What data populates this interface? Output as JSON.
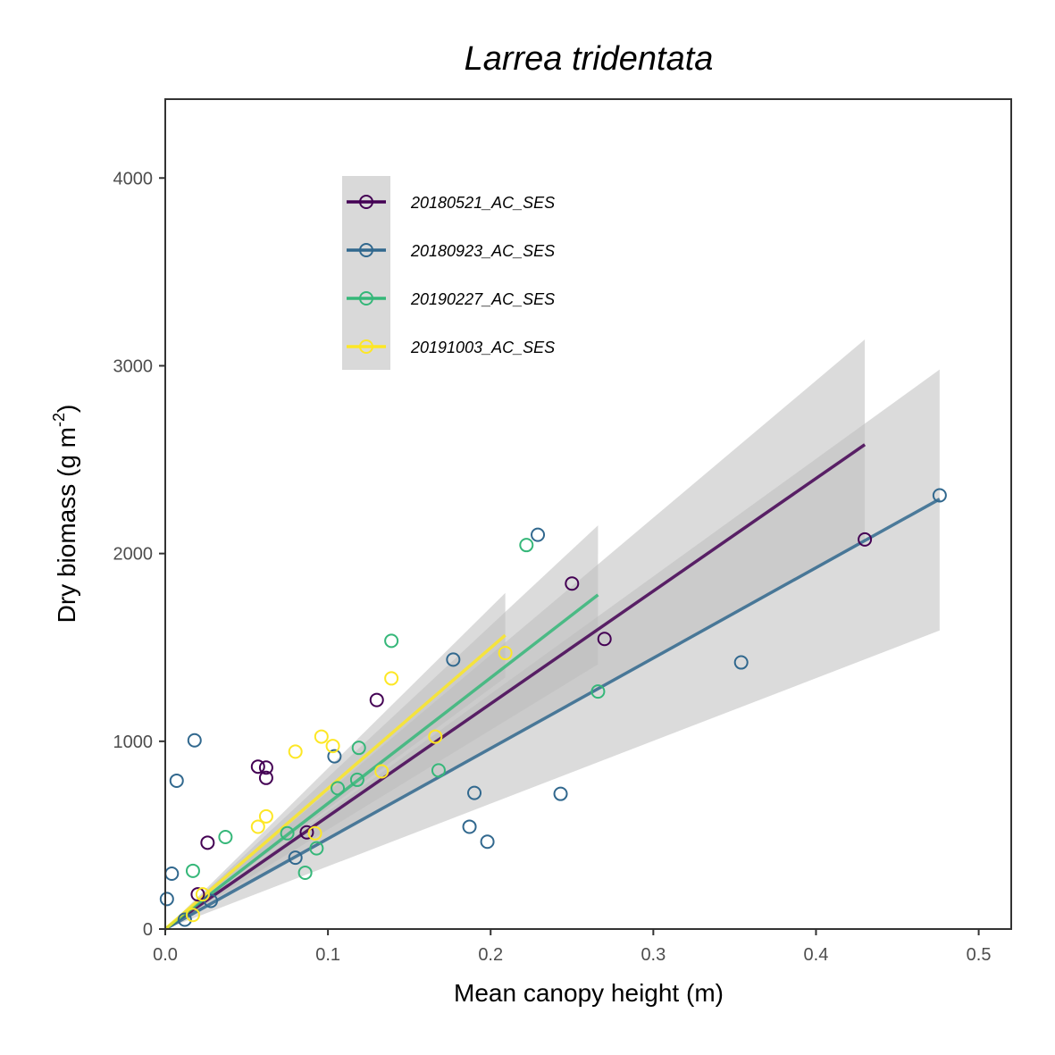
{
  "chart_data": {
    "type": "scatter",
    "title": "Larrea tridentata",
    "xlabel": "Mean canopy height (m)",
    "ylabel": "Dry biomass (g m",
    "ylabel_sup": "-2",
    "ylabel_close": ")",
    "xlim": [
      0,
      0.52
    ],
    "ylim": [
      0,
      4420
    ],
    "x_ticks": [
      0.0,
      0.1,
      0.2,
      0.3,
      0.4,
      0.5
    ],
    "x_tick_labels": [
      "0.0",
      "0.1",
      "0.2",
      "0.3",
      "0.4",
      "0.5"
    ],
    "y_ticks": [
      0,
      1000,
      2000,
      3000,
      4000
    ],
    "y_tick_labels": [
      "0",
      "1000",
      "2000",
      "3000",
      "4000"
    ],
    "grid": false,
    "legend_position": "top-left",
    "confidence_band_color": "#bdbdbd",
    "series": [
      {
        "name": "20180521_AC_SES",
        "color": "#440154",
        "points": [
          [
            0.02,
            185
          ],
          [
            0.026,
            460
          ],
          [
            0.057,
            865
          ],
          [
            0.062,
            860
          ],
          [
            0.062,
            805
          ],
          [
            0.13,
            1220
          ],
          [
            0.25,
            1840
          ],
          [
            0.27,
            1545
          ],
          [
            0.43,
            2075
          ],
          [
            0.087,
            515
          ]
        ],
        "fit": {
          "x": [
            0.0,
            0.43
          ],
          "y": [
            0,
            2580
          ]
        },
        "band": {
          "x": [
            0.0,
            0.43
          ],
          "lower": [
            0,
            2060
          ],
          "upper": [
            0,
            3140
          ]
        }
      },
      {
        "name": "20180923_AC_SES",
        "color": "#31688e",
        "points": [
          [
            0.001,
            160
          ],
          [
            0.004,
            295
          ],
          [
            0.007,
            790
          ],
          [
            0.012,
            50
          ],
          [
            0.018,
            1005
          ],
          [
            0.028,
            150
          ],
          [
            0.08,
            380
          ],
          [
            0.104,
            920
          ],
          [
            0.177,
            1435
          ],
          [
            0.187,
            545
          ],
          [
            0.19,
            725
          ],
          [
            0.198,
            465
          ],
          [
            0.229,
            2100
          ],
          [
            0.243,
            720
          ],
          [
            0.354,
            1420
          ],
          [
            0.476,
            2310
          ]
        ],
        "fit": {
          "x": [
            0.0,
            0.476
          ],
          "y": [
            0,
            2290
          ]
        },
        "band": {
          "x": [
            0.0,
            0.476
          ],
          "lower": [
            0,
            1590
          ],
          "upper": [
            0,
            2980
          ]
        }
      },
      {
        "name": "20190227_AC_SES",
        "color": "#35b779",
        "points": [
          [
            0.017,
            310
          ],
          [
            0.037,
            490
          ],
          [
            0.075,
            510
          ],
          [
            0.086,
            300
          ],
          [
            0.093,
            430
          ],
          [
            0.106,
            750
          ],
          [
            0.118,
            795
          ],
          [
            0.119,
            965
          ],
          [
            0.139,
            1535
          ],
          [
            0.168,
            845
          ],
          [
            0.222,
            2045
          ],
          [
            0.266,
            1265
          ]
        ],
        "fit": {
          "x": [
            0.0,
            0.266
          ],
          "y": [
            0,
            1780
          ]
        },
        "band": {
          "x": [
            0.0,
            0.266
          ],
          "lower": [
            0,
            1410
          ],
          "upper": [
            0,
            2150
          ]
        }
      },
      {
        "name": "20191003_AC_SES",
        "color": "#fde725",
        "points": [
          [
            0.017,
            75
          ],
          [
            0.023,
            185
          ],
          [
            0.057,
            545
          ],
          [
            0.062,
            600
          ],
          [
            0.08,
            945
          ],
          [
            0.092,
            510
          ],
          [
            0.096,
            1025
          ],
          [
            0.103,
            975
          ],
          [
            0.133,
            840
          ],
          [
            0.139,
            1335
          ],
          [
            0.166,
            1025
          ],
          [
            0.209,
            1470
          ]
        ],
        "fit": {
          "x": [
            0.0,
            0.209
          ],
          "y": [
            0,
            1565
          ]
        },
        "band": {
          "x": [
            0.0,
            0.209
          ],
          "lower": [
            0,
            1340
          ],
          "upper": [
            0,
            1790
          ]
        }
      }
    ]
  }
}
